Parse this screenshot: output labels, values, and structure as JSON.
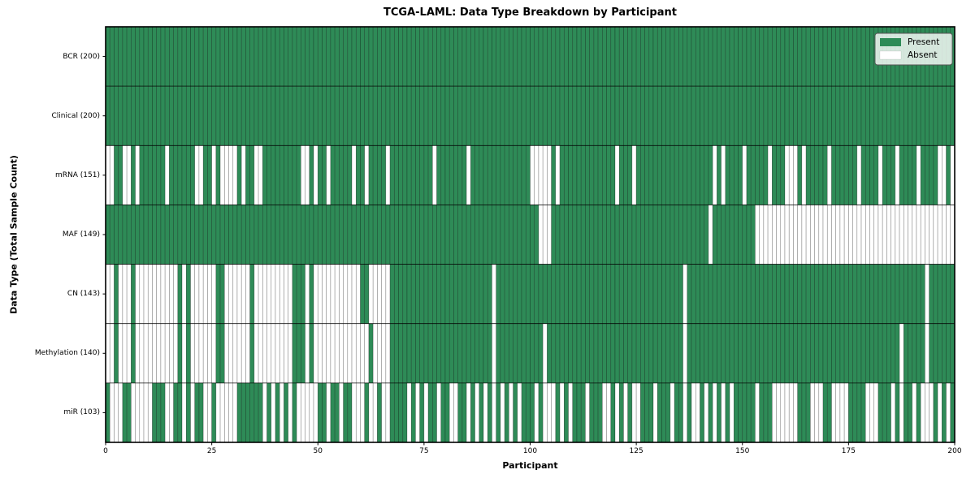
{
  "title": "TCGA-LAML: Data Type Breakdown by Participant",
  "xlabel": "Participant",
  "ylabel": "Data Type (Total Sample Count)",
  "legend": {
    "present_label": "Present",
    "absent_label": "Absent"
  },
  "colors": {
    "present": "#2e8b57",
    "absent": "#ffffff",
    "cell_edge": "rgba(0,0,0,0.38)",
    "row_divider": "rgba(0,0,0,0.8)",
    "plot_border": "#000000",
    "legend_border": "#555555"
  },
  "chart_data": {
    "type": "heatmap",
    "title": "TCGA-LAML: Data Type Breakdown by Participant",
    "xlabel": "Participant",
    "ylabel": "Data Type (Total Sample Count)",
    "x_range": [
      0,
      200
    ],
    "x_ticks": [
      0,
      25,
      50,
      75,
      100,
      125,
      150,
      175,
      200
    ],
    "n_participants": 200,
    "legend_entries": [
      "Present",
      "Absent"
    ],
    "encoding": {
      "1": "Present",
      "0": "Absent"
    },
    "rows": [
      {
        "label": "BCR (200)",
        "total": 200,
        "pattern": [
          "1111111111",
          "1111111111",
          "1111111111",
          "1111111111",
          "1111111111",
          "1111111111",
          "1111111111",
          "1111111111",
          "1111111111",
          "1111111111",
          "1111111111",
          "1111111111",
          "1111111111",
          "1111111111",
          "1111111111",
          "1111111111",
          "1111111111",
          "1111111111",
          "1111111111",
          "1111111111"
        ]
      },
      {
        "label": "Clinical (200)",
        "total": 200,
        "pattern": [
          "1111111111",
          "1111111111",
          "1111111111",
          "1111111111",
          "1111111111",
          "1111111111",
          "1111111111",
          "1111111111",
          "1111111111",
          "1111111111",
          "1111111111",
          "1111111111",
          "1111111111",
          "1111111111",
          "1111111111",
          "1111111111",
          "1111111111",
          "1111111111",
          "1111111111",
          "1111111111"
        ]
      },
      {
        "label": "mRNA (151)",
        "total": 151,
        "pattern": [
          "0011001011",
          "1111011111",
          "1001101000",
          "0101100111",
          "1111110010",
          "1101111101",
          "1011110111",
          "1111111011",
          "1111101111",
          "1111111111",
          "0000010111",
          "1111111111",
          "0111011111",
          "1111111111",
          "1110101111",
          "0111110111",
          "0001011111",
          "0111111011",
          "1101110111",
          "1011110010"
        ]
      },
      {
        "label": "MAF (149)",
        "total": 149,
        "pattern": [
          "1111111111",
          "1111111111",
          "1111111111",
          "1111111111",
          "1111111111",
          "1111111111",
          "1111111111",
          "1111111111",
          "1111111111",
          "1111111111",
          "1100011111",
          "1111111111",
          "1111111111",
          "1111111111",
          "1101111111",
          "1110000000",
          "0000000000",
          "0000000000",
          "0000000000",
          "0000000000"
        ]
      },
      {
        "label": "CN (143)",
        "total": 143,
        "pattern": [
          "0010001000",
          "0000000101",
          "0000001100",
          "0000100000",
          "0000111010",
          "0000000000",
          "1100000111",
          "1111111111",
          "1111111111",
          "1011111111",
          "1111111111",
          "1111111111",
          "1111111111",
          "1111110111",
          "1111111111",
          "1111111111",
          "1111111111",
          "1111111111",
          "1111111111",
          "1110111111"
        ]
      },
      {
        "label": "Methylation (140)",
        "total": 140,
        "pattern": [
          "0010001000",
          "0000000101",
          "0000001100",
          "0000100000",
          "0000111010",
          "0000000000",
          "0010000111",
          "1111111111",
          "1111111111",
          "1011111111",
          "1110111111",
          "1111111111",
          "1111111111",
          "1111110111",
          "1111111111",
          "1111111111",
          "1111111111",
          "1111111111",
          "1111111011",
          "1110111111"
        ]
      },
      {
        "label": "miR (103)",
        "total": 103,
        "pattern": [
          "1000110000",
          "0111001101",
          "0110010000",
          "0111111010",
          "1010100000",
          "1101101100",
          "0100100111",
          "1010101101",
          "1001101010",
          "1010101011",
          "1010001010",
          "1110111001",
          "0101001110",
          "1110110100",
          "1010101011",
          "1110111000",
          "0001110001",
          "1000011110",
          "0011101011",
          "0100010101"
        ]
      }
    ]
  }
}
